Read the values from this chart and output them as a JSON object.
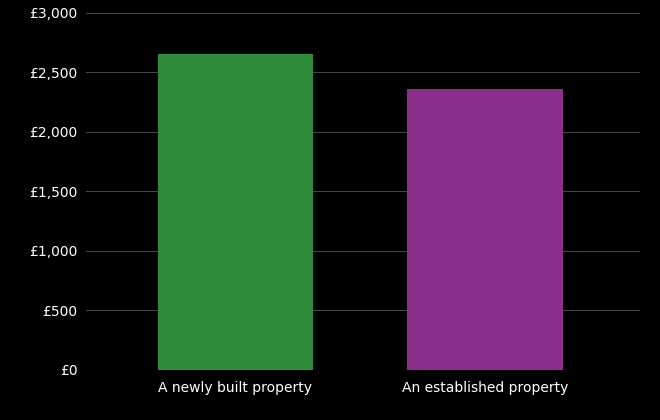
{
  "categories": [
    "A newly built property",
    "An established property"
  ],
  "values": [
    2650,
    2360
  ],
  "bar_colors": [
    "#2e8b3a",
    "#8b2d8b"
  ],
  "background_color": "#000000",
  "text_color": "#ffffff",
  "grid_color": "#555555",
  "ylim": [
    0,
    3000
  ],
  "yticks": [
    0,
    500,
    1000,
    1500,
    2000,
    2500,
    3000
  ],
  "ytick_labels": [
    "£0",
    "£500",
    "£1,000",
    "£1,500",
    "£2,000",
    "£2,500",
    "£3,000"
  ],
  "bar_width": 0.28,
  "x_positions": [
    0.27,
    0.72
  ],
  "xlim": [
    0,
    1
  ]
}
